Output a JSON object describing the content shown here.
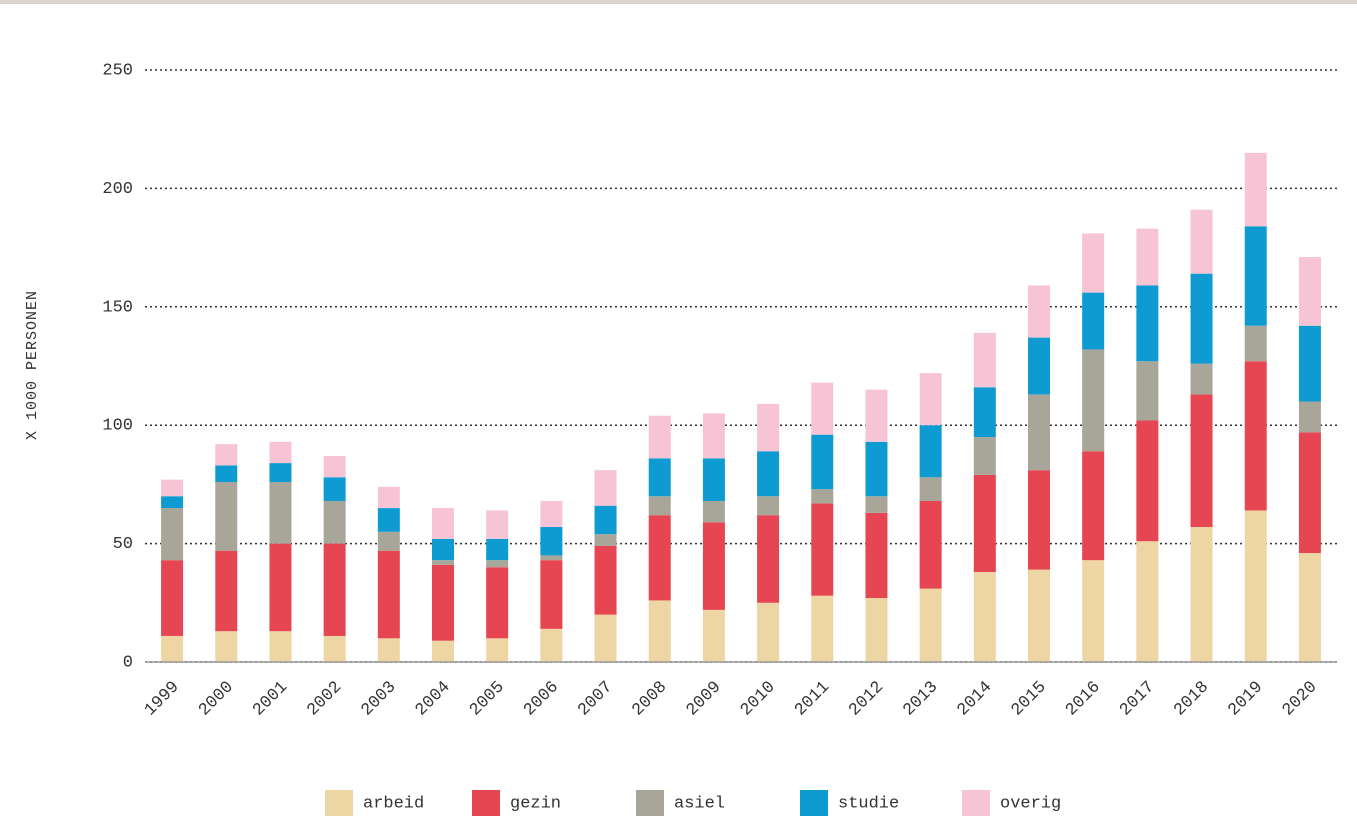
{
  "chart_data": {
    "type": "stacked_bar",
    "y_label": "X 1000 PERSONEN",
    "categories": [
      "1999",
      "2000",
      "2001",
      "2002",
      "2003",
      "2004",
      "2005",
      "2006",
      "2007",
      "2008",
      "2009",
      "2010",
      "2011",
      "2012",
      "2013",
      "2014",
      "2015",
      "2016",
      "2017",
      "2018",
      "2019",
      "2020"
    ],
    "series": [
      {
        "name": "arbeid",
        "color": "#edd6a3",
        "values": [
          11,
          13,
          13,
          11,
          10,
          9,
          10,
          14,
          20,
          26,
          22,
          25,
          28,
          27,
          31,
          38,
          39,
          43,
          51,
          57,
          64,
          46
        ]
      },
      {
        "name": "gezin",
        "color": "#e64552",
        "values": [
          32,
          34,
          37,
          39,
          37,
          32,
          30,
          29,
          29,
          36,
          37,
          37,
          39,
          36,
          37,
          41,
          42,
          46,
          51,
          56,
          63,
          51
        ]
      },
      {
        "name": "asiel",
        "color": "#a7a699",
        "values": [
          22,
          29,
          26,
          18,
          8,
          2,
          3,
          2,
          5,
          8,
          9,
          8,
          6,
          7,
          10,
          16,
          32,
          43,
          25,
          13,
          15,
          13
        ]
      },
      {
        "name": "studie",
        "color": "#0d9bd1",
        "values": [
          5,
          7,
          8,
          10,
          10,
          9,
          9,
          12,
          12,
          16,
          18,
          19,
          23,
          23,
          22,
          21,
          24,
          24,
          32,
          38,
          42,
          32
        ]
      },
      {
        "name": "overig",
        "color": "#f6c4d4",
        "values": [
          7,
          9,
          9,
          9,
          9,
          13,
          12,
          11,
          15,
          18,
          19,
          20,
          22,
          22,
          22,
          23,
          22,
          25,
          24,
          27,
          31,
          29
        ]
      }
    ],
    "ylim": [
      0,
      250
    ],
    "yticks": [
      0,
      50,
      100,
      150,
      200,
      250
    ],
    "grid": true,
    "legend": "bottom"
  }
}
